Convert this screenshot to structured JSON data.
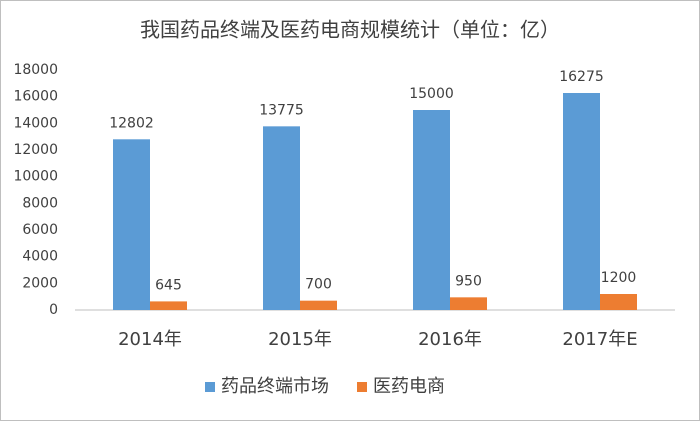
{
  "chart_data": {
    "type": "bar",
    "title": "我国药品终端及医药电商规模统计（单位：亿）",
    "categories": [
      "2014年",
      "2015年",
      "2016年",
      "2017年E"
    ],
    "series": [
      {
        "name": "药品终端市场",
        "color": "#5b9bd5",
        "values": [
          12802,
          13775,
          15000,
          16275
        ]
      },
      {
        "name": "医药电商",
        "color": "#ed7d31",
        "values": [
          645,
          700,
          950,
          1200
        ]
      }
    ],
    "ylim": [
      0,
      18000
    ],
    "yticks": [
      0,
      2000,
      4000,
      6000,
      8000,
      10000,
      12000,
      14000,
      16000,
      18000
    ],
    "grid": false,
    "legend": "bottom"
  }
}
